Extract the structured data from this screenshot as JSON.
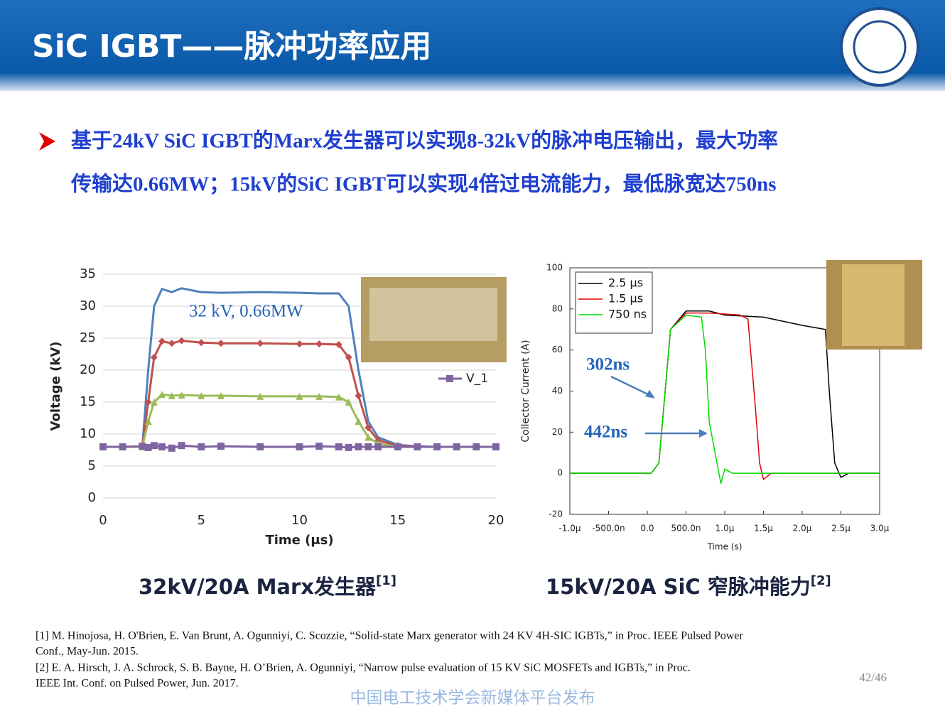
{
  "header": {
    "title": "SiC IGBT——脉冲功率应用"
  },
  "bullet": {
    "lines": [
      "基于24kV SiC IGBT的Marx发生器可以实现8-32kV的脉冲电压输出，最大功率",
      "传输达0.66MW；15kV的SiC IGBT可以实现4倍过电流能力，最低脉宽达750ns"
    ]
  },
  "chart_data": [
    {
      "type": "line",
      "x_label": "Time (μs)",
      "y_label": "Voltage (kV)",
      "annotation": "32 kV, 0.66MW",
      "x": [
        0,
        1,
        2,
        2.3,
        2.6,
        3,
        3.5,
        4,
        5,
        6,
        8,
        10,
        11,
        12,
        12.5,
        13,
        13.5,
        14,
        15,
        16,
        17,
        18,
        19,
        20
      ],
      "xlim": [
        0,
        20
      ],
      "xticks": [
        0,
        5,
        10,
        15,
        20
      ],
      "ylim": [
        0,
        35
      ],
      "yticks": [
        0,
        5,
        10,
        15,
        20,
        25,
        30,
        35
      ],
      "legend": "right",
      "series": [
        {
          "color": "#4f81bd",
          "marker": "none",
          "values": [
            8,
            8,
            8,
            20,
            30,
            32.7,
            32.2,
            32.8,
            32.2,
            32.1,
            32.2,
            32.1,
            32,
            32,
            30,
            20,
            12,
            9.5,
            8.3,
            8.1,
            8,
            8,
            8,
            8
          ]
        },
        {
          "color": "#c0504d",
          "marker": "diamond",
          "values": [
            8,
            8,
            8,
            15,
            22,
            24.5,
            24.2,
            24.6,
            24.3,
            24.2,
            24.2,
            24.1,
            24.1,
            24,
            22,
            16,
            11,
            9,
            8.2,
            8,
            8,
            8,
            8,
            8
          ]
        },
        {
          "color": "#9bbb59",
          "marker": "triangle",
          "values": [
            8,
            8,
            8,
            12,
            15,
            16.2,
            16,
            16.1,
            16,
            16,
            15.9,
            15.9,
            15.9,
            15.8,
            15,
            12,
            9.5,
            8.5,
            8,
            8,
            8,
            8,
            8,
            8
          ]
        },
        {
          "name": "V_1",
          "color": "#8064a2",
          "marker": "square",
          "values": [
            8,
            8,
            8.1,
            7.9,
            8.2,
            8,
            7.8,
            8.2,
            8,
            8.1,
            8,
            8,
            8.1,
            8,
            7.9,
            8,
            8,
            8,
            8,
            8,
            8,
            8,
            8,
            8
          ]
        }
      ]
    },
    {
      "type": "line",
      "x_label": "Time (s)",
      "y_label": "Collector Current (A)",
      "xlim": [
        -1e-06,
        3e-06
      ],
      "xticks": [
        {
          "value": -1e-06,
          "label": "-1.0μ"
        },
        {
          "value": -5e-07,
          "label": "-500.0n"
        },
        {
          "value": 0,
          "label": "0.0"
        },
        {
          "value": 5e-07,
          "label": "500.0n"
        },
        {
          "value": 1e-06,
          "label": "1.0μ"
        },
        {
          "value": 1.5e-06,
          "label": "1.5μ"
        },
        {
          "value": 2e-06,
          "label": "2.0μ"
        },
        {
          "value": 2.5e-06,
          "label": "2.5μ"
        },
        {
          "value": 3e-06,
          "label": "3.0μ"
        }
      ],
      "ylim": [
        -20,
        100
      ],
      "yticks": [
        -20,
        0,
        20,
        40,
        60,
        80,
        100
      ],
      "legend": "upper left",
      "annotations": [
        "302ns",
        "442ns"
      ],
      "series": [
        {
          "name": "2.5 μs",
          "color": "#000000",
          "marker": "none",
          "x": [
            -1e-06,
            5e-08,
            1.5e-07,
            3e-07,
            5e-07,
            8e-07,
            1e-06,
            1.5e-06,
            2e-06,
            2.3e-06,
            2.35e-06,
            2.42e-06,
            2.5e-06,
            2.6e-06,
            3e-06
          ],
          "values": [
            0,
            0,
            5,
            70,
            79,
            79,
            77,
            76,
            72,
            70,
            40,
            5,
            -2,
            0,
            0
          ]
        },
        {
          "name": "1.5 μs",
          "color": "#e00000",
          "marker": "none",
          "x": [
            -1e-06,
            5e-08,
            1.5e-07,
            3e-07,
            5e-07,
            8e-07,
            1.2e-06,
            1.3e-06,
            1.4e-06,
            1.45e-06,
            1.5e-06,
            1.6e-06,
            3e-06
          ],
          "values": [
            0,
            0,
            5,
            70,
            78,
            78,
            77,
            75,
            30,
            5,
            -3,
            0,
            0
          ]
        },
        {
          "name": "750 ns",
          "color": "#00dd00",
          "marker": "none",
          "x": [
            -1e-06,
            5e-08,
            1.5e-07,
            3e-07,
            5e-07,
            7e-07,
            7.5e-07,
            8e-07,
            9e-07,
            9.5e-07,
            1e-06,
            1.1e-06,
            3e-06
          ],
          "values": [
            0,
            0,
            5,
            70,
            77,
            76,
            60,
            25,
            5,
            -5,
            2,
            0,
            0
          ]
        }
      ]
    }
  ],
  "captions": [
    {
      "text": "32kV/20A Marx发生器",
      "ref": "[1]"
    },
    {
      "text": "15kV/20A SiC 窄脉冲能力",
      "ref": "[2]"
    }
  ],
  "references": [
    "[1] M. Hinojosa, H. O'Brien, E. Van Brunt, A. Ogunniyi, C. Scozzie, “Solid-state Marx generator with 24 KV 4H-SIC IGBTs,” in Proc. IEEE Pulsed Power",
    "Conf., May-Jun. 2015.",
    "[2] E. A. Hirsch, J. A. Schrock, S. B. Bayne, H. O’Brien, A. Ogunniyi, “Narrow pulse evaluation of 15 KV SiC MOSFETs and IGBTs,” in Proc.",
    "IEEE Int. Conf. on Pulsed Power, Jun. 2017."
  ],
  "page_number": "42/46",
  "watermark": "中国电工技术学会新媒体平台发布"
}
